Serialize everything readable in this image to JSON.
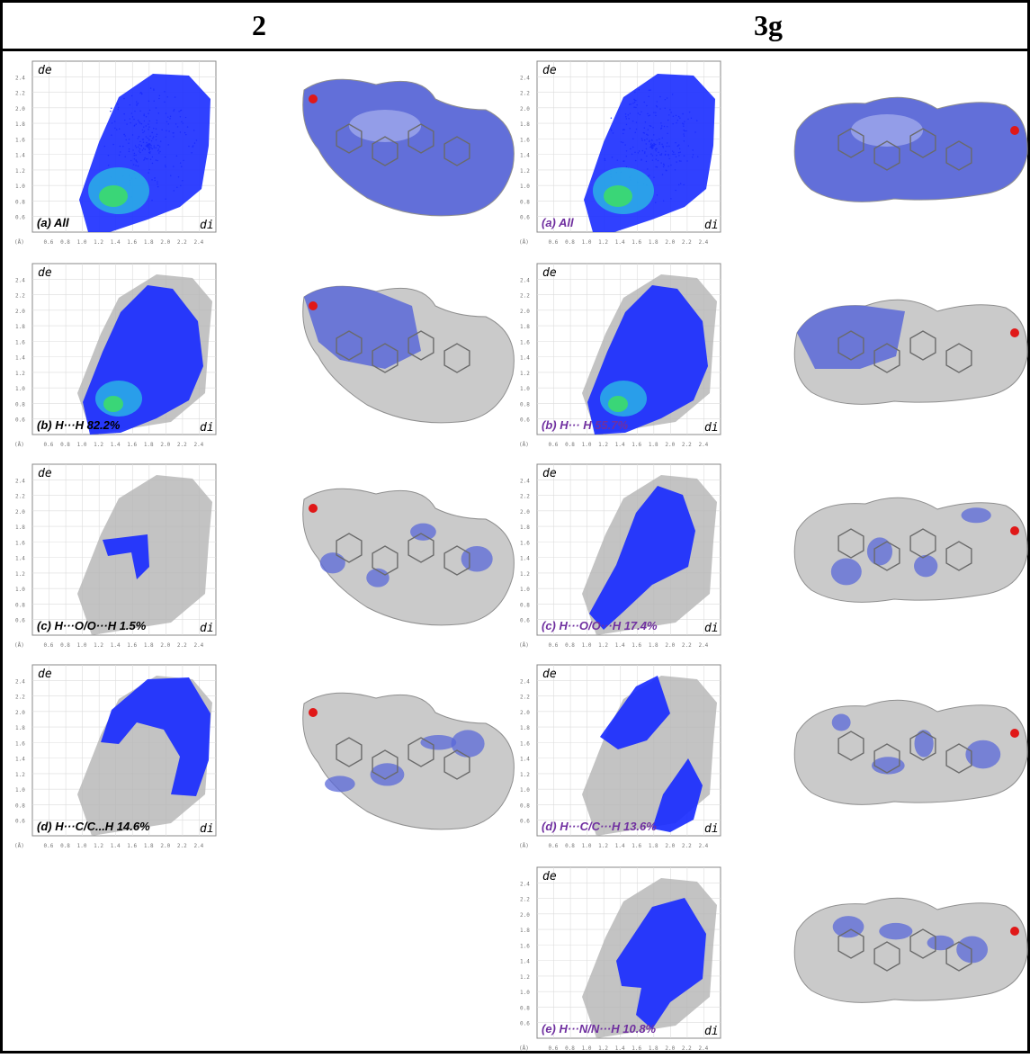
{
  "columns": [
    {
      "header": "2",
      "plots": [
        {
          "label": "(a) All",
          "category": "all",
          "color": "#000000"
        },
        {
          "label": "(b) H···H 82.2%",
          "category": "hh",
          "color": "#000000"
        },
        {
          "label": "(c) H···O/O···H 1.5%",
          "category": "ho",
          "color": "#000000"
        },
        {
          "label": "(d) H···C/C...H 14.6%",
          "category": "hc",
          "color": "#000000"
        }
      ]
    },
    {
      "header": "3g",
      "plots": [
        {
          "label": "(a) All",
          "category": "all",
          "color": "#7030a0"
        },
        {
          "label": "(b) H··· H 55.7%",
          "category": "hh",
          "color": "#7030a0"
        },
        {
          "label": "(c) H···O/O···H 17.4%",
          "category": "ho",
          "color": "#7030a0"
        },
        {
          "label": "(d) H···C/C···H 13.6%",
          "category": "hc",
          "color": "#7030a0"
        },
        {
          "label": "(e) H···N/N···H 10.8%",
          "category": "hn",
          "color": "#7030a0"
        }
      ]
    }
  ],
  "axes": {
    "de_label": "de",
    "di_label": "di",
    "unit": "(Å)",
    "ticks": [
      "0.6",
      "0.8",
      "1.0",
      "1.2",
      "1.4",
      "1.6",
      "1.8",
      "2.0",
      "2.2",
      "2.4"
    ],
    "range": [
      0.4,
      2.6
    ]
  },
  "colors": {
    "blue": "#1a2cff",
    "cyan": "#2ab0e6",
    "green": "#3cdc6a",
    "grey_points": "#b4b4b4",
    "surface_blue": "#5a68d8",
    "surface_grey": "#c8c8c8",
    "red_spot": "#e01818"
  }
}
